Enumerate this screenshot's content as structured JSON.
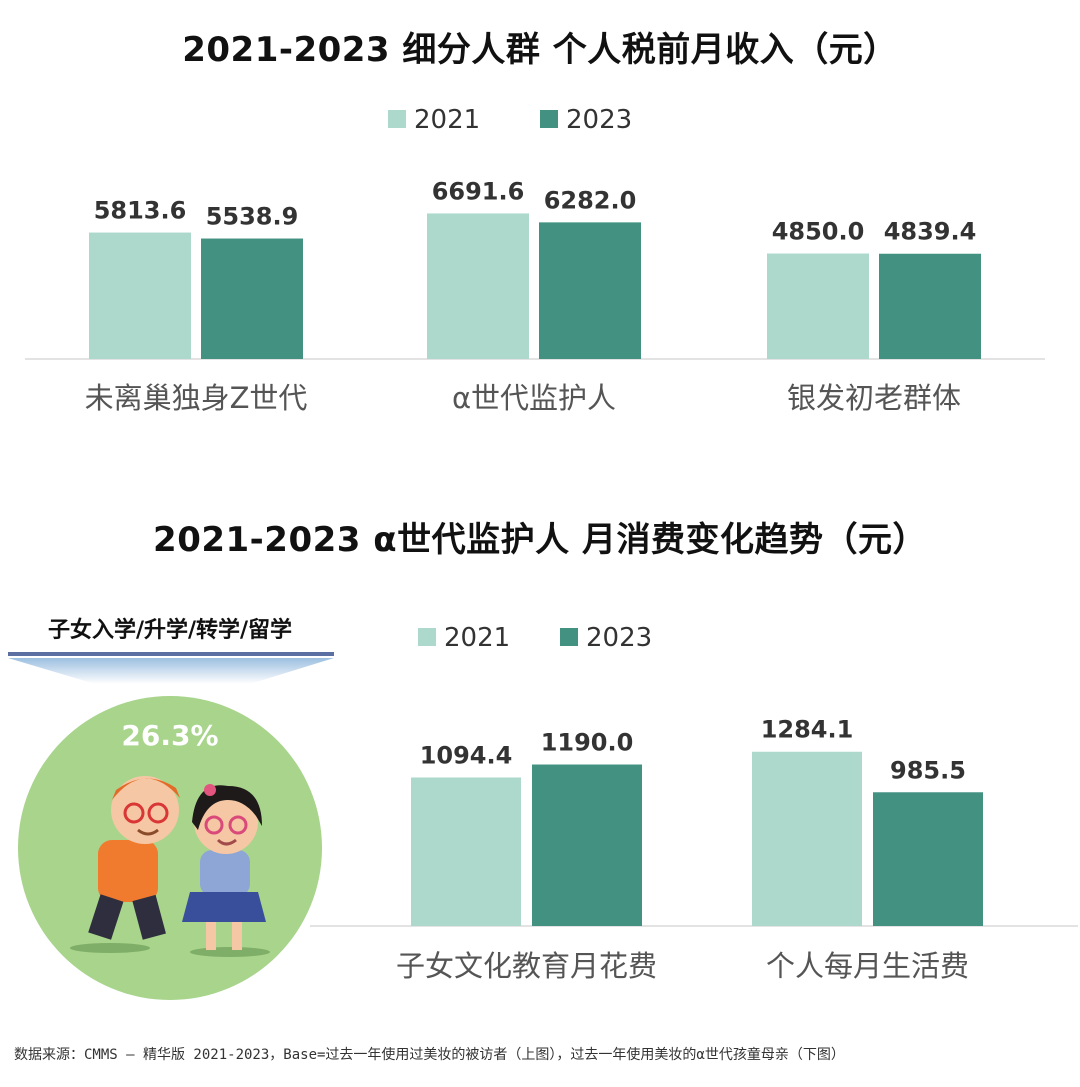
{
  "colors": {
    "c2021": "#acd9cc",
    "c2023": "#429181",
    "axis": "#e3e3e3",
    "circle": "#a8d48c"
  },
  "top": {
    "title": "2021-2023  细分人群  个人税前月收入（元）",
    "legend": [
      "2021",
      "2023"
    ]
  },
  "bottom": {
    "title": "2021-2023  α世代监护人  月消费变化趋势（元）",
    "legend": [
      "2021",
      "2023"
    ],
    "banner_label": "子女入学/升学/转学/留学",
    "percent": "26.3%"
  },
  "source": "数据来源：CMMS – 精华版 2021-2023，Base=过去一年使用过美妆的被访者（上图），过去一年使用美妆的α世代孩童母亲（下图）",
  "chart_data": [
    {
      "type": "bar",
      "title": "2021-2023  细分人群  个人税前月收入（元）",
      "categories": [
        "未离巢独身Z世代",
        "α世代监护人",
        "银发初老群体"
      ],
      "series": [
        {
          "name": "2021",
          "values": [
            5813.6,
            6691.6,
            4850.0
          ],
          "labels": [
            "5813.6",
            "6691.6",
            "4850.0"
          ]
        },
        {
          "name": "2023",
          "values": [
            5538.9,
            6282.0,
            4839.4
          ],
          "labels": [
            "5538.9",
            "6282.0",
            "4839.4"
          ]
        }
      ],
      "legend": "top-center",
      "grid": false
    },
    {
      "type": "bar",
      "title": "2021-2023  α世代监护人  月消费变化趋势（元）",
      "categories": [
        "子女文化教育月花费",
        "个人每月生活费"
      ],
      "series": [
        {
          "name": "2021",
          "values": [
            1094.4,
            1284.1
          ],
          "labels": [
            "1094.4",
            "1284.1"
          ]
        },
        {
          "name": "2023",
          "values": [
            1190.0,
            985.5
          ],
          "labels": [
            "1190.0",
            "985.5"
          ]
        }
      ],
      "legend": "top-center",
      "grid": false
    }
  ]
}
